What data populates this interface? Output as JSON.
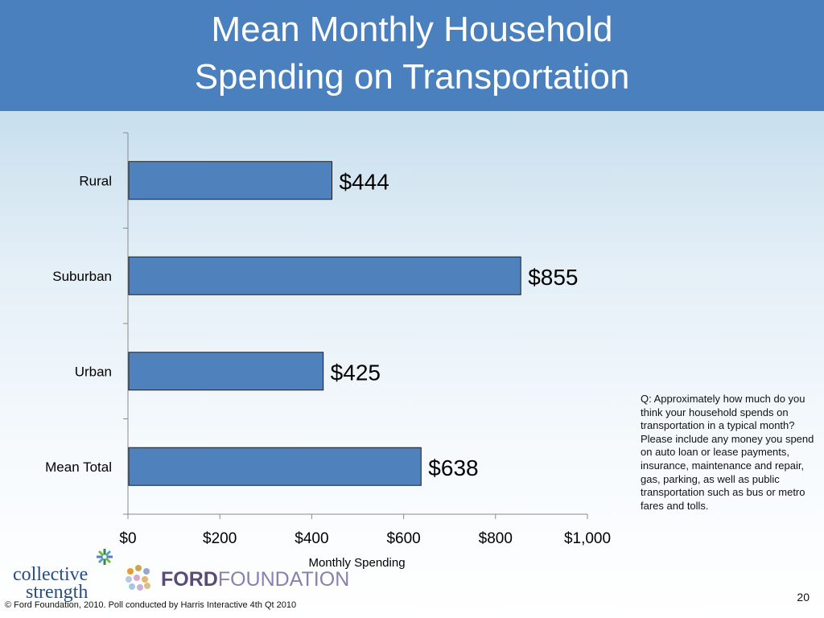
{
  "slide": {
    "title_line1": "Mean Monthly Household",
    "title_line2": "Spending on Transportation",
    "question": "Q:  Approximately how much do you think your household spends on transportation in a typical month? Please include any money you spend on auto loan or lease payments, insurance, maintenance and repair, gas, parking, as well as public transportation such as bus or metro fares and tolls.",
    "footer": "© Ford Foundation, 2010. Poll conducted by Harris Interactive 4th Qt 2010",
    "page_number": "20"
  },
  "logos": {
    "collective_line1": "collective",
    "collective_line2": "strength",
    "ford_part1": "FORD",
    "ford_part2": "FOUNDATION"
  },
  "colors": {
    "title_bar": "#4a80be",
    "bar_fill": "#4f81bd",
    "bar_stroke": "#1f1f1f"
  },
  "chart_data": {
    "type": "bar",
    "orientation": "horizontal",
    "categories": [
      "Rural",
      "Suburban",
      "Urban",
      "Mean Total"
    ],
    "values": [
      444,
      855,
      425,
      638
    ],
    "data_labels": [
      "$444",
      "$855",
      "$425",
      "$638"
    ],
    "xlabel": "Monthly Spending",
    "xlim": [
      0,
      1000
    ],
    "x_ticks": [
      0,
      200,
      400,
      600,
      800,
      1000
    ],
    "x_tick_labels": [
      "$0",
      "$200",
      "$400",
      "$600",
      "$800",
      "$1,000"
    ],
    "grid": false,
    "legend": "none"
  }
}
